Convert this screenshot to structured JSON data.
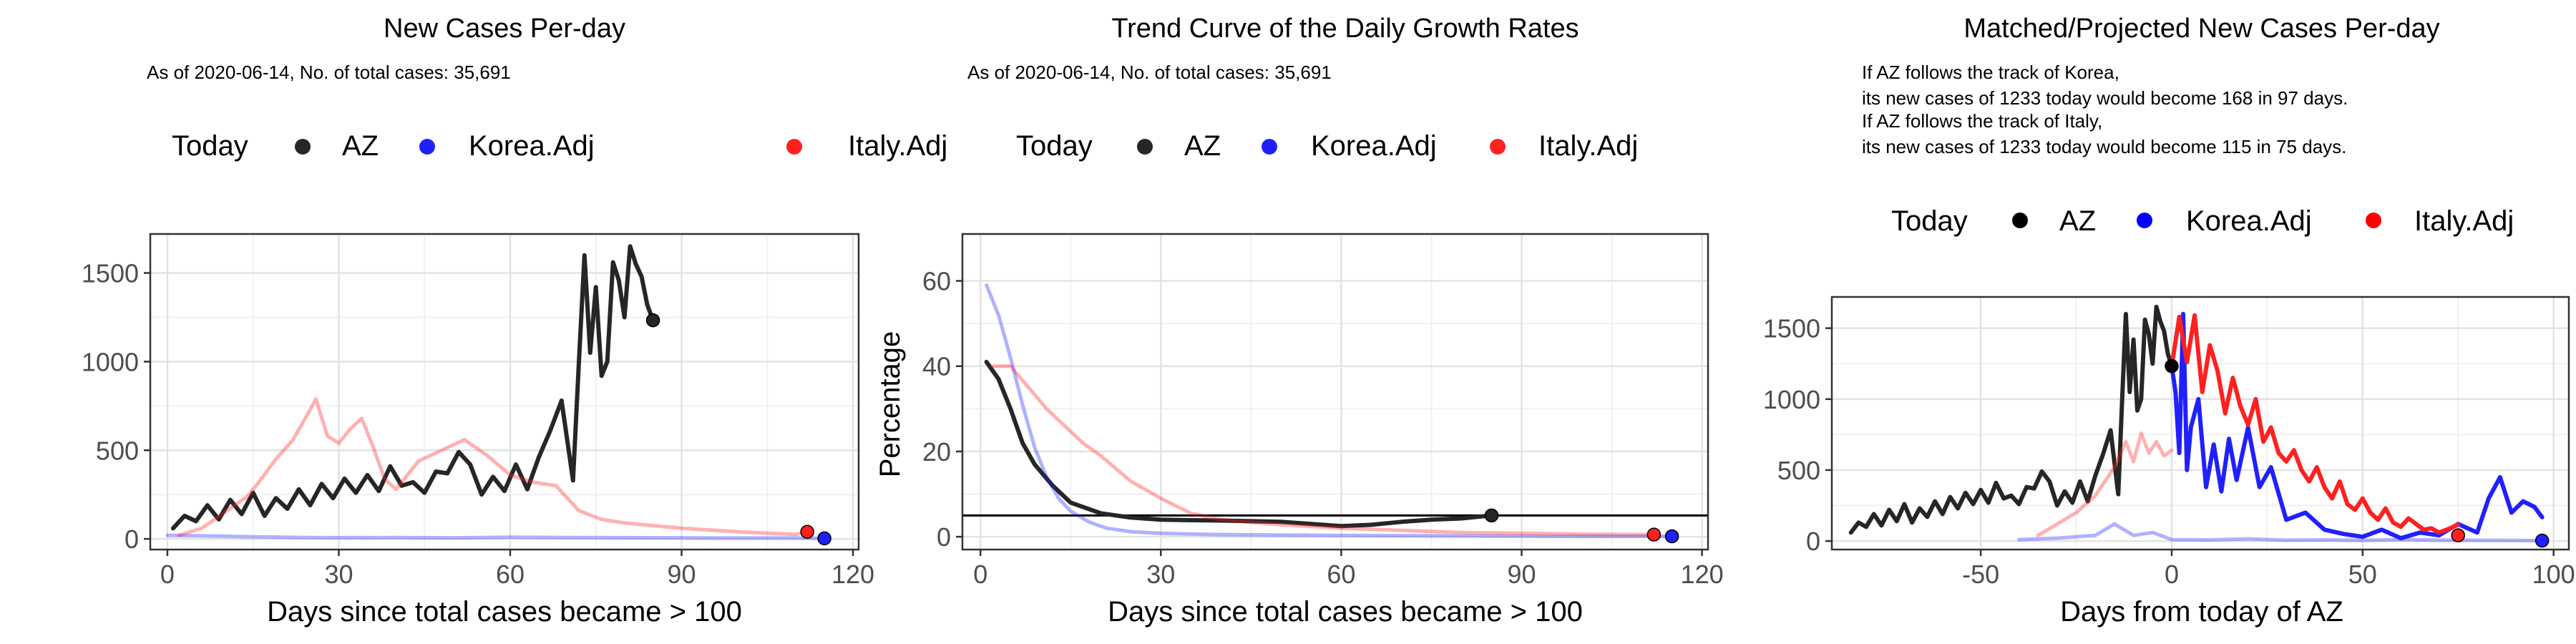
{
  "legend_title": "Today",
  "legend_items": [
    {
      "label": "AZ",
      "color": "#262626"
    },
    {
      "label": "Korea.Adj",
      "color": "#2020ff"
    },
    {
      "label": "Italy.Adj",
      "color": "#ff2020"
    }
  ],
  "chart_data": [
    {
      "type": "line",
      "title": "New Cases Per-day",
      "subtitle": "As of 2020-06-14, No. of total cases: 35,691",
      "xlabel": "Days since total cases became > 100",
      "ylabel": "",
      "xlim": [
        -3,
        121
      ],
      "ylim": [
        -60,
        1720
      ],
      "xticks": [
        0,
        30,
        60,
        90,
        120
      ],
      "yticks": [
        0,
        500,
        1000,
        1500
      ],
      "grid": true,
      "legend_position": "top",
      "series": [
        {
          "name": "AZ",
          "color": "#262626",
          "alpha": 1,
          "x": [
            1,
            3,
            5,
            7,
            9,
            11,
            13,
            15,
            17,
            19,
            21,
            23,
            25,
            27,
            29,
            31,
            33,
            35,
            37,
            39,
            41,
            43,
            45,
            47,
            49,
            51,
            53,
            55,
            57,
            59,
            61,
            63,
            65,
            67,
            69,
            71,
            72,
            73,
            74,
            75,
            76,
            77,
            78,
            79,
            80,
            81,
            82,
            83,
            84,
            85
          ],
          "y": [
            60,
            130,
            100,
            190,
            110,
            220,
            140,
            260,
            130,
            230,
            170,
            280,
            190,
            310,
            230,
            340,
            260,
            360,
            270,
            410,
            300,
            320,
            260,
            380,
            370,
            490,
            420,
            250,
            350,
            270,
            420,
            280,
            460,
            610,
            780,
            330,
            980,
            1600,
            1050,
            1420,
            920,
            1000,
            1560,
            1460,
            1250,
            1650,
            1550,
            1480,
            1320,
            1233
          ]
        },
        {
          "name": "Korea.Adj",
          "color": "#2020ff",
          "alpha": 0.35,
          "x": [
            0,
            5,
            10,
            15,
            20,
            25,
            30,
            40,
            50,
            60,
            70,
            80,
            90,
            100,
            110,
            115
          ],
          "y": [
            20,
            18,
            15,
            12,
            10,
            8,
            7,
            8,
            6,
            10,
            8,
            7,
            6,
            5,
            5,
            3
          ]
        },
        {
          "name": "Italy.Adj",
          "color": "#ff2020",
          "alpha": 0.35,
          "x": [
            2,
            6,
            10,
            14,
            16,
            19,
            22,
            25,
            26,
            28,
            30,
            32,
            34,
            36,
            38,
            40,
            44,
            48,
            52,
            56,
            60,
            64,
            68,
            72,
            76,
            80,
            90,
            100,
            110,
            112
          ],
          "y": [
            20,
            60,
            150,
            240,
            320,
            450,
            560,
            730,
            790,
            580,
            540,
            620,
            680,
            520,
            340,
            280,
            440,
            500,
            560,
            470,
            360,
            320,
            300,
            160,
            110,
            90,
            60,
            40,
            25,
            40
          ]
        }
      ],
      "end_points": [
        {
          "series": "AZ",
          "x": 85,
          "y": 1233,
          "color": "#262626"
        },
        {
          "series": "Korea.Adj",
          "x": 115,
          "y": 3,
          "color": "#2020ff"
        },
        {
          "series": "Italy.Adj",
          "x": 112,
          "y": 40,
          "color": "#ff2020"
        }
      ]
    },
    {
      "type": "line",
      "title": "Trend Curve of the Daily Growth Rates",
      "subtitle": "As of 2020-06-14, No. of total cases: 35,691",
      "xlabel": "Days since total cases became > 100",
      "ylabel": "Percentage",
      "xlim": [
        -3,
        121
      ],
      "ylim": [
        -3,
        71
      ],
      "xticks": [
        0,
        30,
        60,
        90,
        120
      ],
      "yticks": [
        0,
        20,
        40,
        60
      ],
      "grid": true,
      "hline": 5,
      "legend_position": "top",
      "series": [
        {
          "name": "AZ",
          "color": "#262626",
          "alpha": 1,
          "x": [
            1,
            3,
            5,
            7,
            9,
            12,
            15,
            20,
            25,
            30,
            40,
            50,
            60,
            65,
            70,
            75,
            80,
            85
          ],
          "y": [
            41,
            37,
            30,
            22,
            17,
            12,
            8,
            5.5,
            4.5,
            4,
            3.8,
            3.5,
            2.5,
            2.8,
            3.5,
            4,
            4.3,
            5
          ]
        },
        {
          "name": "Korea.Adj",
          "color": "#2020ff",
          "alpha": 0.35,
          "x": [
            1,
            3,
            5,
            7,
            9,
            11,
            13,
            15,
            18,
            21,
            25,
            30,
            40,
            60,
            80,
            100,
            115
          ],
          "y": [
            59,
            52,
            42,
            31,
            21,
            14,
            9,
            6,
            3.5,
            2,
            1.2,
            0.8,
            0.5,
            0.3,
            0.2,
            0.1,
            0.1
          ]
        },
        {
          "name": "Italy.Adj",
          "color": "#ff2020",
          "alpha": 0.35,
          "x": [
            2,
            5,
            8,
            11,
            14,
            17,
            20,
            25,
            30,
            35,
            40,
            50,
            60,
            80,
            100,
            112
          ],
          "y": [
            40,
            40,
            35,
            30,
            26,
            22,
            19,
            13,
            9,
            5.5,
            4,
            2.8,
            2,
            1,
            0.6,
            0.5
          ]
        }
      ],
      "end_points": [
        {
          "series": "AZ",
          "x": 85,
          "y": 5,
          "color": "#262626"
        },
        {
          "series": "Korea.Adj",
          "x": 115,
          "y": 0.1,
          "color": "#2020ff"
        },
        {
          "series": "Italy.Adj",
          "x": 112,
          "y": 0.5,
          "color": "#ff2020"
        }
      ]
    },
    {
      "type": "line",
      "title": "Matched/Projected New Cases Per-day",
      "subtitle_lines": [
        "If AZ follows the track of Korea,",
        "its new cases of 1233 today would become 168 in 97 days.",
        "If AZ follows the track of Italy,",
        "its new cases of 1233 today would become 115 in 75 days."
      ],
      "xlabel": "Days from today of AZ",
      "ylabel": "",
      "xlim": [
        -89,
        104
      ],
      "ylim": [
        -60,
        1720
      ],
      "xticks": [
        -50,
        0,
        50,
        100
      ],
      "yticks": [
        0,
        500,
        1000,
        1500
      ],
      "grid": true,
      "legend_position": "top",
      "series": [
        {
          "name": "AZ",
          "color": "#262626",
          "alpha": 1,
          "x": [
            -84,
            -82,
            -80,
            -78,
            -76,
            -74,
            -72,
            -70,
            -68,
            -66,
            -64,
            -62,
            -60,
            -58,
            -56,
            -54,
            -52,
            -50,
            -48,
            -46,
            -44,
            -42,
            -40,
            -38,
            -36,
            -34,
            -32,
            -30,
            -28,
            -26,
            -24,
            -22,
            -20,
            -18,
            -16,
            -14,
            -13,
            -12,
            -11,
            -10,
            -9,
            -8,
            -7,
            -6,
            -5,
            -4,
            -3,
            -2,
            -1,
            0
          ],
          "y": [
            60,
            130,
            100,
            190,
            110,
            220,
            140,
            260,
            130,
            230,
            170,
            280,
            190,
            310,
            230,
            340,
            260,
            360,
            270,
            410,
            300,
            320,
            260,
            380,
            370,
            490,
            420,
            250,
            350,
            270,
            420,
            280,
            460,
            610,
            780,
            330,
            980,
            1600,
            1050,
            1420,
            920,
            1000,
            1560,
            1460,
            1250,
            1650,
            1550,
            1480,
            1320,
            1233
          ]
        },
        {
          "name": "Korea.Adj (matched)",
          "color": "#2020ff",
          "alpha": 0.35,
          "x": [
            -40,
            -30,
            -20,
            -15,
            -10,
            -5,
            0,
            10,
            20,
            30,
            40,
            50,
            60,
            70,
            80,
            90,
            97
          ],
          "y": [
            10,
            20,
            40,
            120,
            40,
            60,
            10,
            8,
            15,
            6,
            8,
            5,
            10,
            6,
            5,
            4,
            3
          ]
        },
        {
          "name": "Italy.Adj (matched)",
          "color": "#ff2020",
          "alpha": 0.35,
          "x": [
            -35,
            -30,
            -25,
            -20,
            -15,
            -12,
            -10,
            -8,
            -6,
            -4,
            -2,
            0
          ],
          "y": [
            40,
            120,
            200,
            320,
            520,
            700,
            560,
            760,
            620,
            700,
            600,
            640
          ]
        },
        {
          "name": "Korea.Adj (projected)",
          "color": "#2020ff",
          "alpha": 1,
          "x": [
            0,
            1,
            2,
            3,
            4,
            5,
            7,
            9,
            11,
            13,
            15,
            17,
            20,
            23,
            26,
            30,
            35,
            40,
            45,
            50,
            55,
            60,
            65,
            70,
            75,
            80,
            83,
            86,
            89,
            92,
            95,
            97
          ],
          "y": [
            1233,
            1050,
            620,
            1600,
            500,
            800,
            1000,
            380,
            680,
            350,
            720,
            430,
            800,
            380,
            520,
            150,
            200,
            80,
            50,
            30,
            80,
            20,
            60,
            40,
            120,
            60,
            300,
            450,
            200,
            280,
            240,
            168
          ]
        },
        {
          "name": "Italy.Adj (projected)",
          "color": "#ff2020",
          "alpha": 1,
          "x": [
            0,
            2,
            4,
            6,
            8,
            10,
            12,
            14,
            16,
            18,
            20,
            22,
            24,
            26,
            28,
            30,
            32,
            34,
            36,
            38,
            40,
            42,
            44,
            46,
            48,
            50,
            52,
            54,
            56,
            58,
            60,
            62,
            64,
            66,
            68,
            70,
            72,
            75
          ],
          "y": [
            1233,
            1580,
            1260,
            1590,
            1050,
            1380,
            1200,
            900,
            1150,
            950,
            820,
            1000,
            700,
            800,
            620,
            560,
            640,
            500,
            420,
            520,
            380,
            300,
            420,
            260,
            220,
            300,
            200,
            150,
            230,
            130,
            100,
            160,
            120,
            80,
            90,
            60,
            80,
            115
          ]
        }
      ],
      "end_points": [
        {
          "series": "AZ",
          "x": 0,
          "y": 1233,
          "color": "#000000"
        },
        {
          "series": "Korea.Adj",
          "x": 97,
          "y": 3,
          "color": "#2020ff"
        },
        {
          "series": "Italy.Adj",
          "x": 75,
          "y": 40,
          "color": "#ff2020"
        }
      ]
    }
  ]
}
